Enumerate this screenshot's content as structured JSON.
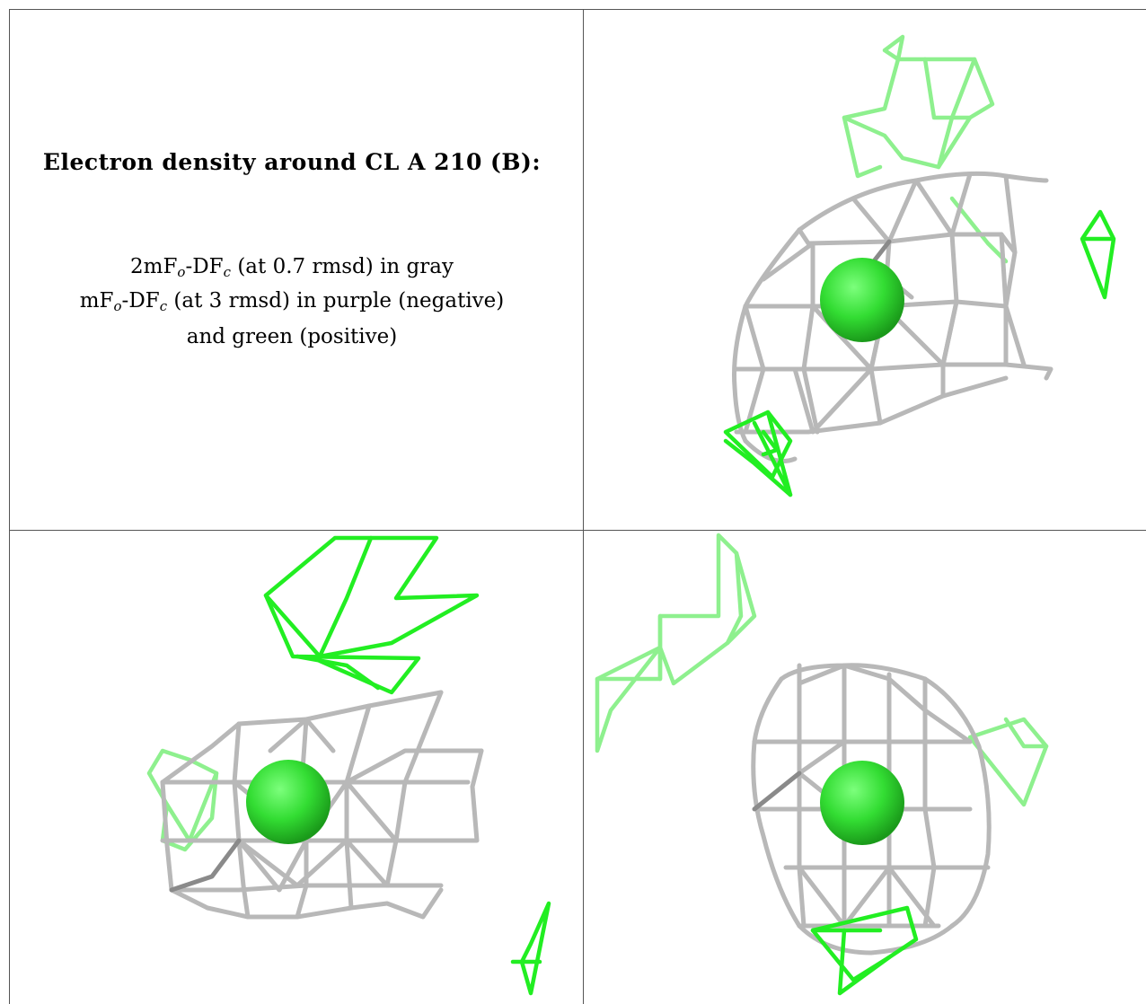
{
  "caption": {
    "title": "Electron density around CL A 210 (B):",
    "line1_prefix": "2mF",
    "line1_sub1": "o",
    "line1_mid": "-DF",
    "line1_sub2": "c",
    "line1_suffix": " (at 0.7 rmsd) in gray",
    "line2_prefix": "mF",
    "line2_sub1": "o",
    "line2_mid": "-DF",
    "line2_sub2": "c",
    "line2_suffix": " (at 3 rmsd) in purple (negative)",
    "line3": "and green (positive)"
  },
  "colors": {
    "mesh_2fofc": "#b8b8b8",
    "mesh_fofc_positive": "#22ee22",
    "chloride_atom": "#33dd33"
  },
  "panels": [
    {
      "name": "view-top-right",
      "atom": "CL A 210"
    },
    {
      "name": "view-bottom-left",
      "atom": "CL A 210"
    },
    {
      "name": "view-bottom-right",
      "atom": "CL A 210"
    }
  ]
}
